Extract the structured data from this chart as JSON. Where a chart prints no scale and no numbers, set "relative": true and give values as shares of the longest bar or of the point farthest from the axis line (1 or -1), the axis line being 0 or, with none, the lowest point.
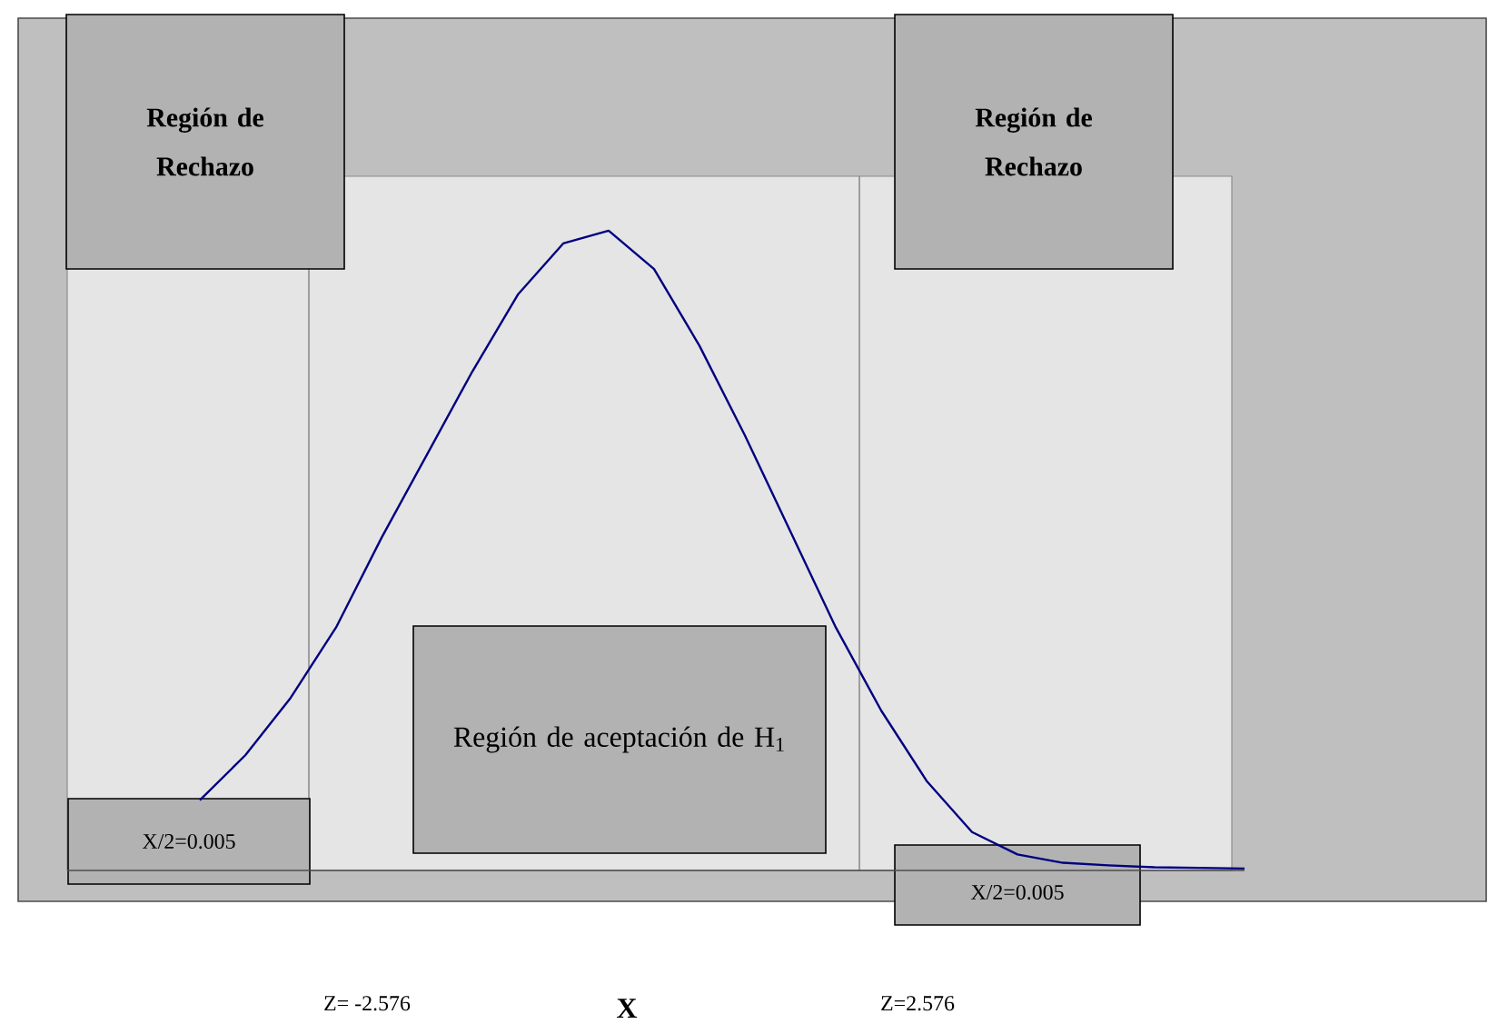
{
  "chart_data": {
    "type": "line",
    "relative": true,
    "categories": [
      null,
      null,
      null,
      null,
      null,
      null,
      null,
      null,
      null,
      null,
      null,
      null,
      null,
      null,
      null,
      null,
      null,
      null,
      null,
      null,
      null,
      null,
      null,
      null
    ],
    "series": [
      {
        "color": "#000080",
        "values": [
          0.11,
          0.18,
          0.27,
          0.38,
          0.52,
          0.65,
          0.78,
          0.9,
          0.98,
          1,
          0.94,
          0.82,
          0.68,
          0.53,
          0.38,
          0.25,
          0.14,
          0.06,
          0.025,
          0.012,
          0.008,
          0.005,
          0.004,
          0.003
        ]
      }
    ],
    "annotations": [
      "Región de Rechazo",
      "Región de Rechazo",
      "Región de aceptación de H$_{1}$",
      "X/2=0.005",
      "X/2=0.005",
      "X",
      "Z= -2.576",
      "Z=2.576"
    ]
  }
}
